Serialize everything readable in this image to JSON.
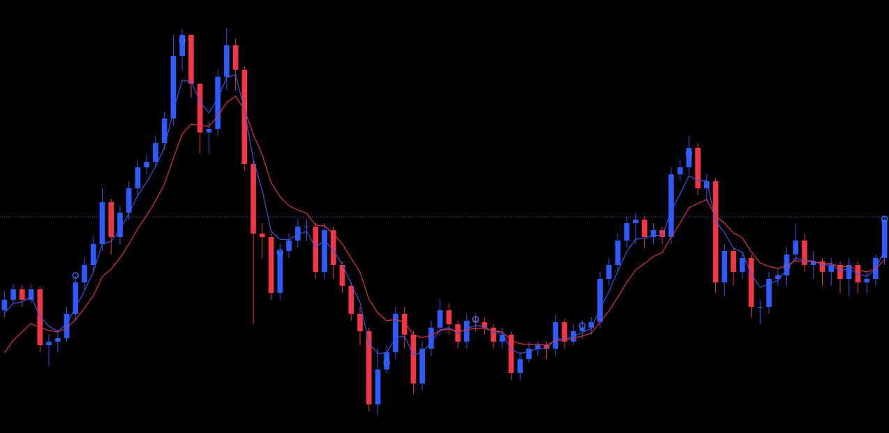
{
  "chart_data": {
    "type": "candlestick",
    "ylim": [
      0,
      621
    ],
    "up_color": "#2e5bff",
    "down_color": "#f23645",
    "open": [
      176,
      191,
      206,
      191,
      206,
      126,
      131,
      136,
      171,
      216,
      241,
      271,
      331,
      281,
      316,
      351,
      381,
      389,
      416,
      451,
      541,
      571,
      501,
      431,
      436,
      511,
      556,
      521,
      386,
      286,
      281,
      201,
      261,
      276,
      296,
      296,
      231,
      291,
      241,
      211,
      171,
      146,
      41,
      91,
      116,
      171,
      141,
      71,
      121,
      151,
      176,
      156,
      131,
      161,
      159,
      151,
      131,
      141,
      86,
      106,
      121,
      126,
      121,
      159,
      131,
      146,
      151,
      159,
      221,
      241,
      276,
      301,
      306,
      281,
      291,
      281,
      371,
      381,
      409,
      351,
      361,
      216,
      261,
      231,
      251,
      181,
      181,
      221,
      226,
      256,
      276,
      241,
      246,
      231,
      241,
      221,
      241,
      216,
      221,
      251
    ],
    "high": [
      203,
      214,
      212,
      214,
      210,
      141,
      146,
      181,
      226,
      251,
      281,
      351,
      336,
      326,
      361,
      391,
      399,
      426,
      461,
      571,
      578,
      571,
      501,
      446,
      521,
      581,
      566,
      526,
      391,
      301,
      286,
      271,
      286,
      306,
      306,
      301,
      301,
      296,
      246,
      216,
      181,
      151,
      121,
      126,
      181,
      181,
      146,
      131,
      161,
      191,
      186,
      161,
      171,
      171,
      166,
      156,
      151,
      146,
      116,
      131,
      131,
      131,
      169,
      164,
      156,
      161,
      166,
      231,
      251,
      286,
      311,
      316,
      311,
      301,
      296,
      381,
      391,
      426,
      416,
      371,
      366,
      271,
      266,
      261,
      256,
      191,
      231,
      236,
      266,
      301,
      286,
      261,
      251,
      251,
      246,
      251,
      246,
      231,
      256,
      311
    ],
    "low": [
      166,
      186,
      181,
      186,
      116,
      96,
      116,
      131,
      161,
      206,
      231,
      261,
      256,
      271,
      306,
      341,
      371,
      381,
      406,
      441,
      521,
      481,
      401,
      401,
      426,
      491,
      491,
      376,
      156,
      251,
      191,
      191,
      251,
      266,
      276,
      221,
      221,
      221,
      201,
      161,
      126,
      31,
      26,
      86,
      106,
      121,
      56,
      61,
      111,
      141,
      141,
      121,
      121,
      146,
      141,
      121,
      121,
      76,
      76,
      101,
      111,
      106,
      111,
      121,
      126,
      136,
      141,
      151,
      211,
      231,
      266,
      271,
      266,
      271,
      271,
      271,
      361,
      371,
      341,
      331,
      201,
      196,
      211,
      221,
      166,
      156,
      171,
      211,
      211,
      246,
      231,
      221,
      211,
      211,
      201,
      196,
      201,
      201,
      211,
      241
    ],
    "close": [
      191,
      206,
      191,
      206,
      126,
      131,
      136,
      171,
      216,
      241,
      271,
      331,
      281,
      316,
      351,
      381,
      389,
      416,
      451,
      541,
      571,
      501,
      431,
      436,
      511,
      556,
      521,
      386,
      286,
      281,
      201,
      261,
      276,
      296,
      296,
      231,
      291,
      241,
      211,
      171,
      146,
      41,
      91,
      116,
      171,
      141,
      71,
      121,
      151,
      176,
      156,
      131,
      161,
      159,
      151,
      131,
      141,
      86,
      106,
      121,
      126,
      121,
      159,
      131,
      146,
      151,
      159,
      221,
      241,
      276,
      301,
      306,
      281,
      291,
      281,
      371,
      381,
      409,
      351,
      361,
      216,
      261,
      231,
      251,
      181,
      181,
      221,
      226,
      256,
      276,
      241,
      246,
      231,
      241,
      221,
      241,
      216,
      221,
      251,
      306
    ],
    "series": [
      {
        "color": "#3a57e8",
        "values": [
          172,
          186,
          188,
          195,
          167,
          153,
          146,
          156,
          180,
          204,
          231,
          271,
          275,
          291,
          315,
          341,
          360,
          382,
          410,
          462,
          506,
          504,
          475,
          459,
          480,
          510,
          514,
          463,
          392,
          348,
          289,
          278,
          277,
          285,
          289,
          266,
          276,
          262,
          242,
          214,
          187,
          129,
          114,
          115,
          137,
          139,
          112,
          116,
          130,
          148,
          151,
          143,
          150,
          154,
          153,
          144,
          143,
          120,
          114,
          117,
          121,
          121,
          136,
          134,
          139,
          144,
          150,
          178,
          203,
          232,
          260,
          278,
          279,
          284,
          283,
          318,
          343,
          369,
          362,
          362,
          304,
          287,
          265,
          259,
          228,
          209,
          214,
          219,
          234,
          251,
          247,
          247,
          241,
          241,
          233,
          236,
          228,
          225,
          235,
          263
        ]
      },
      {
        "color": "#e0333d",
        "values": [
          115,
          133,
          145,
          157,
          151,
          147,
          145,
          150,
          163,
          179,
          197,
          224,
          235,
          251,
          271,
          293,
          312,
          333,
          357,
          394,
          429,
          443,
          441,
          440,
          454,
          474,
          483,
          464,
          428,
          399,
          359,
          339,
          326,
          320,
          315,
          298,
          297,
          286,
          271,
          251,
          230,
          192,
          172,
          161,
          163,
          159,
          141,
          137,
          140,
          147,
          149,
          145,
          148,
          150,
          150,
          146,
          145,
          133,
          128,
          127,
          127,
          126,
          133,
          133,
          136,
          139,
          143,
          159,
          175,
          195,
          216,
          234,
          243,
          253,
          259,
          281,
          301,
          323,
          329,
          335,
          311,
          301,
          287,
          280,
          260,
          244,
          239,
          236,
          240,
          247,
          246,
          246,
          243,
          243,
          238,
          239,
          234,
          231,
          235,
          249
        ]
      }
    ],
    "signals": {
      "color": "#3a6bff",
      "values": [
        null,
        null,
        null,
        null,
        null,
        null,
        null,
        null,
        226,
        null,
        null,
        null,
        null,
        null,
        null,
        null,
        null,
        null,
        null,
        null,
        563,
        null,
        null,
        null,
        null,
        null,
        null,
        null,
        null,
        null,
        null,
        259,
        null,
        null,
        null,
        null,
        null,
        null,
        null,
        null,
        null,
        null,
        null,
        101,
        null,
        null,
        null,
        null,
        null,
        null,
        null,
        null,
        null,
        163,
        null,
        null,
        null,
        null,
        null,
        null,
        null,
        null,
        null,
        null,
        null,
        154,
        null,
        null,
        null,
        null,
        null,
        null,
        null,
        null,
        null,
        null,
        null,
        401,
        null,
        null,
        null,
        null,
        null,
        null,
        null,
        null,
        null,
        null,
        238,
        null,
        null,
        null,
        null,
        null,
        null,
        null,
        null,
        null,
        null,
        307
      ]
    },
    "price_line": {
      "value": 310,
      "color": "#3d4fc0"
    }
  }
}
